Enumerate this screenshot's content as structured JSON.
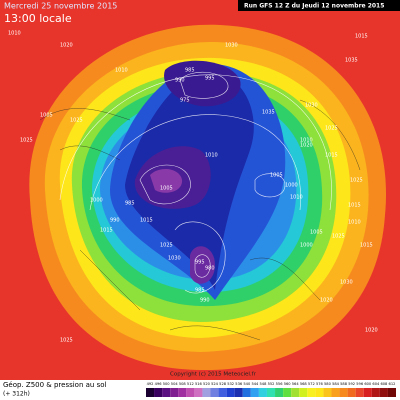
{
  "header": {
    "date": "Mercredi 25 novembre 2015",
    "time": "13:00 locale",
    "run": "Run GFS 12 Z du Jeudi 12 novembre 2015"
  },
  "footer": {
    "title": "Géop. Z500 & pression au sol",
    "lead": "(+ 312h)",
    "credit": "Copyright (c) 2015 Meteociel.fr",
    "scale": [
      "492",
      "496",
      "500",
      "504",
      "508",
      "512",
      "516",
      "520",
      "524",
      "528",
      "532",
      "536",
      "540",
      "544",
      "548",
      "552",
      "556",
      "560",
      "564",
      "568",
      "572",
      "576",
      "580",
      "584",
      "588",
      "592",
      "596",
      "600",
      "604",
      "608",
      "612"
    ]
  },
  "pressure_labels": [
    "1010",
    "1020",
    "1015",
    "1010",
    "1005",
    "1025",
    "985",
    "990",
    "995",
    "975",
    "1035",
    "1030",
    "1025",
    "1020",
    "1015",
    "1005",
    "1000",
    "1010",
    "1035",
    "1025",
    "1015",
    "1010",
    "1005",
    "1000",
    "995",
    "985",
    "990",
    "1000",
    "1010",
    "1015",
    "1015",
    "1025",
    "1030",
    "1025",
    "1005",
    "985",
    "990",
    "980",
    "1025",
    "1030",
    "1020",
    "1010",
    "1015",
    "1020",
    "1025",
    "1030"
  ]
}
